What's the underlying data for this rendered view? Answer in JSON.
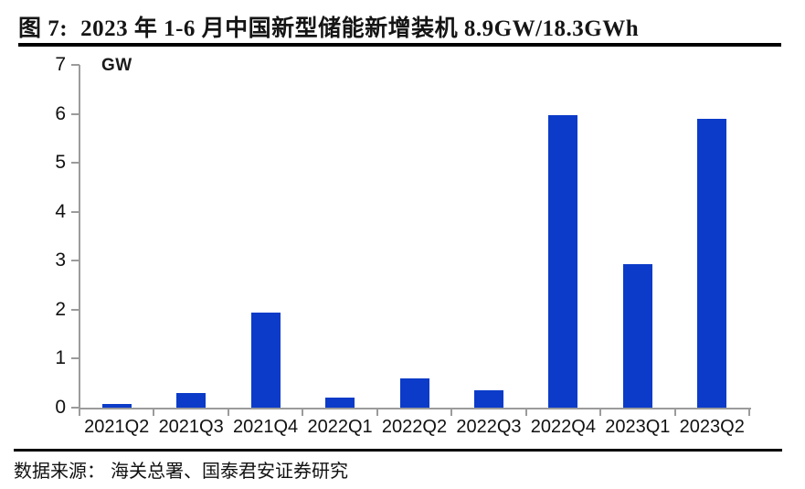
{
  "header": {
    "figure_label": "图 7:",
    "title": "2023 年 1-6 月中国新型储能新增装机 8.9GW/18.3GWh"
  },
  "footer": {
    "source_label": "数据来源：",
    "source_text": "海关总署、国泰君安证券研究"
  },
  "colors": {
    "bar": "#0b3bc8",
    "axis": "#9b9b9b",
    "text": "#111111",
    "rule": "#000000"
  },
  "chart_data": {
    "type": "bar",
    "title": "2023 年 1-6 月中国新型储能新增装机 8.9GW/18.3GWh",
    "unit_label": "GW",
    "xlabel": "",
    "ylabel": "GW",
    "categories": [
      "2021Q2",
      "2021Q3",
      "2021Q4",
      "2022Q1",
      "2022Q2",
      "2022Q3",
      "2022Q4",
      "2023Q1",
      "2023Q2"
    ],
    "values": [
      0.08,
      0.3,
      1.95,
      0.2,
      0.6,
      0.35,
      5.97,
      2.93,
      5.9
    ],
    "ylim": [
      0,
      7
    ],
    "ytick_step": 1,
    "yticks": [
      0,
      1,
      2,
      3,
      4,
      5,
      6,
      7
    ],
    "grid": false,
    "legend": "none",
    "bar_color": "#0b3bc8",
    "axis_color": "#9b9b9b"
  }
}
